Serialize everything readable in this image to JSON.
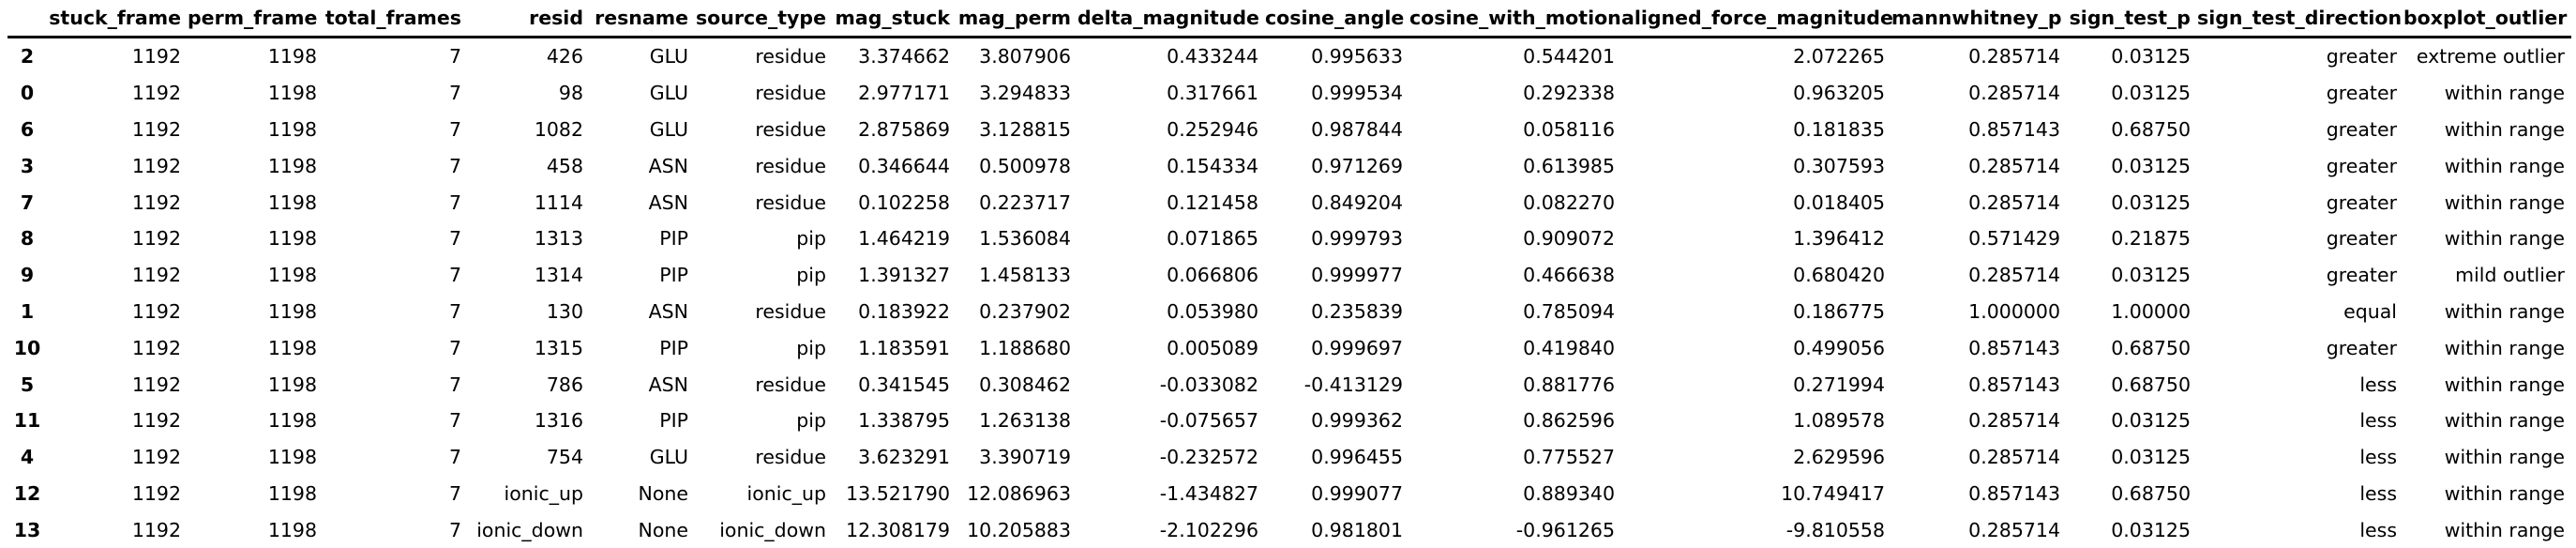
{
  "table": {
    "index_header": "",
    "columns": [
      "stuck_frame",
      "perm_frame",
      "total_frames",
      "resid",
      "resname",
      "source_type",
      "mag_stuck",
      "mag_perm",
      "delta_magnitude",
      "cosine_angle",
      "cosine_with_motion",
      "aligned_force_magnitude",
      "mannwhitney_p",
      "sign_test_p",
      "sign_test_direction",
      "boxplot_outlier"
    ],
    "rows": [
      {
        "index": "2",
        "cells": [
          "1192",
          "1198",
          "7",
          "426",
          "GLU",
          "residue",
          "3.374662",
          "3.807906",
          "0.433244",
          "0.995633",
          "0.544201",
          "2.072265",
          "0.285714",
          "0.03125",
          "greater",
          "extreme outlier"
        ]
      },
      {
        "index": "0",
        "cells": [
          "1192",
          "1198",
          "7",
          "98",
          "GLU",
          "residue",
          "2.977171",
          "3.294833",
          "0.317661",
          "0.999534",
          "0.292338",
          "0.963205",
          "0.285714",
          "0.03125",
          "greater",
          "within range"
        ]
      },
      {
        "index": "6",
        "cells": [
          "1192",
          "1198",
          "7",
          "1082",
          "GLU",
          "residue",
          "2.875869",
          "3.128815",
          "0.252946",
          "0.987844",
          "0.058116",
          "0.181835",
          "0.857143",
          "0.68750",
          "greater",
          "within range"
        ]
      },
      {
        "index": "3",
        "cells": [
          "1192",
          "1198",
          "7",
          "458",
          "ASN",
          "residue",
          "0.346644",
          "0.500978",
          "0.154334",
          "0.971269",
          "0.613985",
          "0.307593",
          "0.285714",
          "0.03125",
          "greater",
          "within range"
        ]
      },
      {
        "index": "7",
        "cells": [
          "1192",
          "1198",
          "7",
          "1114",
          "ASN",
          "residue",
          "0.102258",
          "0.223717",
          "0.121458",
          "0.849204",
          "0.082270",
          "0.018405",
          "0.285714",
          "0.03125",
          "greater",
          "within range"
        ]
      },
      {
        "index": "8",
        "cells": [
          "1192",
          "1198",
          "7",
          "1313",
          "PIP",
          "pip",
          "1.464219",
          "1.536084",
          "0.071865",
          "0.999793",
          "0.909072",
          "1.396412",
          "0.571429",
          "0.21875",
          "greater",
          "within range"
        ]
      },
      {
        "index": "9",
        "cells": [
          "1192",
          "1198",
          "7",
          "1314",
          "PIP",
          "pip",
          "1.391327",
          "1.458133",
          "0.066806",
          "0.999977",
          "0.466638",
          "0.680420",
          "0.285714",
          "0.03125",
          "greater",
          "mild outlier"
        ]
      },
      {
        "index": "1",
        "cells": [
          "1192",
          "1198",
          "7",
          "130",
          "ASN",
          "residue",
          "0.183922",
          "0.237902",
          "0.053980",
          "0.235839",
          "0.785094",
          "0.186775",
          "1.000000",
          "1.00000",
          "equal",
          "within range"
        ]
      },
      {
        "index": "10",
        "cells": [
          "1192",
          "1198",
          "7",
          "1315",
          "PIP",
          "pip",
          "1.183591",
          "1.188680",
          "0.005089",
          "0.999697",
          "0.419840",
          "0.499056",
          "0.857143",
          "0.68750",
          "greater",
          "within range"
        ]
      },
      {
        "index": "5",
        "cells": [
          "1192",
          "1198",
          "7",
          "786",
          "ASN",
          "residue",
          "0.341545",
          "0.308462",
          "-0.033082",
          "-0.413129",
          "0.881776",
          "0.271994",
          "0.857143",
          "0.68750",
          "less",
          "within range"
        ]
      },
      {
        "index": "11",
        "cells": [
          "1192",
          "1198",
          "7",
          "1316",
          "PIP",
          "pip",
          "1.338795",
          "1.263138",
          "-0.075657",
          "0.999362",
          "0.862596",
          "1.089578",
          "0.285714",
          "0.03125",
          "less",
          "within range"
        ]
      },
      {
        "index": "4",
        "cells": [
          "1192",
          "1198",
          "7",
          "754",
          "GLU",
          "residue",
          "3.623291",
          "3.390719",
          "-0.232572",
          "0.996455",
          "0.775527",
          "2.629596",
          "0.285714",
          "0.03125",
          "less",
          "within range"
        ]
      },
      {
        "index": "12",
        "cells": [
          "1192",
          "1198",
          "7",
          "ionic_up",
          "None",
          "ionic_up",
          "13.521790",
          "12.086963",
          "-1.434827",
          "0.999077",
          "0.889340",
          "10.749417",
          "0.857143",
          "0.68750",
          "less",
          "within range"
        ]
      },
      {
        "index": "13",
        "cells": [
          "1192",
          "1198",
          "7",
          "ionic_down",
          "None",
          "ionic_down",
          "12.308179",
          "10.205883",
          "-2.102296",
          "0.981801",
          "-0.961265",
          "-9.810558",
          "0.285714",
          "0.03125",
          "less",
          "within range"
        ]
      }
    ]
  }
}
